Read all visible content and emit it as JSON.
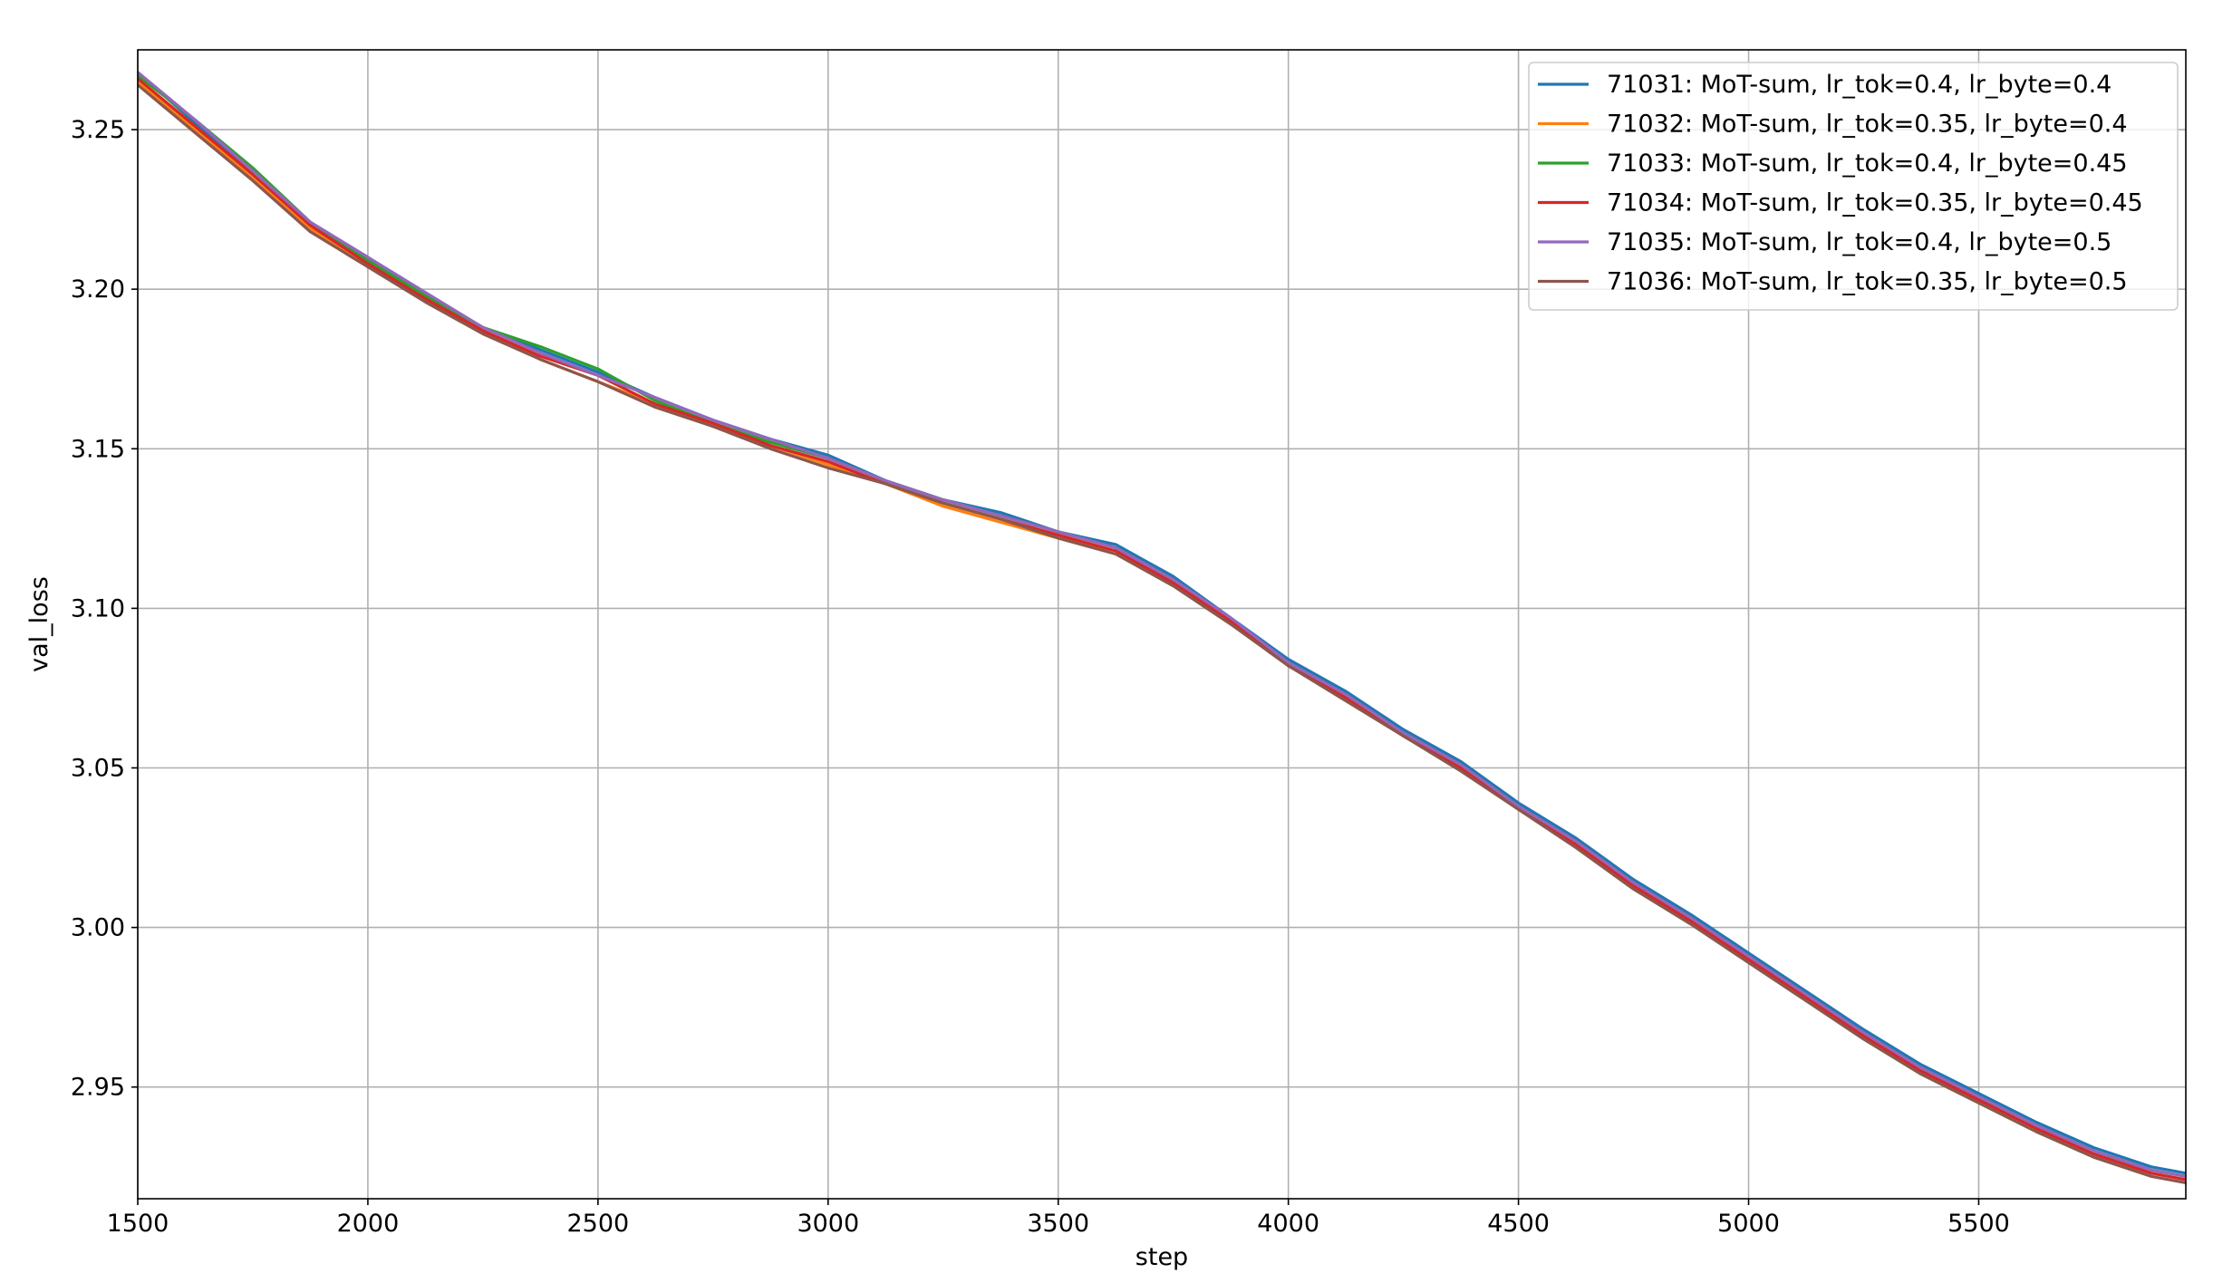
{
  "chart_data": {
    "type": "line",
    "title": "",
    "xlabel": "step",
    "ylabel": "val_loss",
    "xlim": [
      1500,
      5950
    ],
    "ylim": [
      2.915,
      3.275
    ],
    "xticks": [
      1500,
      2000,
      2500,
      3000,
      3500,
      4000,
      4500,
      5000,
      5500
    ],
    "xtick_labels": [
      "1500",
      "2000",
      "2500",
      "3000",
      "3500",
      "4000",
      "4500",
      "5000",
      "5500"
    ],
    "yticks": [
      2.95,
      3.0,
      3.05,
      3.1,
      3.15,
      3.2,
      3.25
    ],
    "ytick_labels": [
      "2.95",
      "3.00",
      "3.05",
      "3.10",
      "3.15",
      "3.20",
      "3.25"
    ],
    "grid": true,
    "legend_position": "top-right",
    "x": [
      1500,
      1625,
      1750,
      1875,
      2000,
      2125,
      2250,
      2375,
      2500,
      2625,
      2750,
      2875,
      3000,
      3125,
      3250,
      3375,
      3500,
      3625,
      3750,
      3875,
      4000,
      4125,
      4250,
      4375,
      4500,
      4625,
      4750,
      4875,
      5000,
      5125,
      5250,
      5375,
      5500,
      5625,
      5750,
      5875,
      5950
    ],
    "series": [
      {
        "name": "71031: MoT-sum, lr_tok=0.4, lr_byte=0.4",
        "color": "#1f77b4",
        "values": [
          3.268,
          3.252,
          3.237,
          3.221,
          3.21,
          3.198,
          3.188,
          3.181,
          3.174,
          3.166,
          3.159,
          3.153,
          3.148,
          3.14,
          3.134,
          3.13,
          3.124,
          3.12,
          3.11,
          3.097,
          3.084,
          3.074,
          3.062,
          3.052,
          3.039,
          3.028,
          3.015,
          3.004,
          2.992,
          2.98,
          2.968,
          2.957,
          2.948,
          2.939,
          2.931,
          2.925,
          2.923
        ]
      },
      {
        "name": "71032: MoT-sum, lr_tok=0.35, lr_byte=0.4",
        "color": "#ff7f0e",
        "values": [
          3.265,
          3.25,
          3.235,
          3.219,
          3.208,
          3.197,
          3.187,
          3.178,
          3.171,
          3.164,
          3.157,
          3.151,
          3.145,
          3.139,
          3.132,
          3.127,
          3.122,
          3.118,
          3.108,
          3.096,
          3.082,
          3.072,
          3.06,
          3.05,
          3.037,
          3.026,
          3.013,
          3.002,
          2.99,
          2.978,
          2.966,
          2.955,
          2.946,
          2.937,
          2.929,
          2.923,
          2.921
        ]
      },
      {
        "name": "71033: MoT-sum, lr_tok=0.4, lr_byte=0.45",
        "color": "#2ca02c",
        "values": [
          3.267,
          3.253,
          3.238,
          3.221,
          3.209,
          3.198,
          3.188,
          3.182,
          3.175,
          3.165,
          3.158,
          3.152,
          3.147,
          3.14,
          3.134,
          3.129,
          3.124,
          3.119,
          3.109,
          3.096,
          3.083,
          3.073,
          3.061,
          3.051,
          3.038,
          3.027,
          3.014,
          3.003,
          2.991,
          2.979,
          2.967,
          2.956,
          2.947,
          2.938,
          2.93,
          2.924,
          2.922
        ]
      },
      {
        "name": "71034: MoT-sum, lr_tok=0.35, lr_byte=0.45",
        "color": "#d62728",
        "values": [
          3.266,
          3.251,
          3.236,
          3.22,
          3.208,
          3.197,
          3.187,
          3.179,
          3.173,
          3.164,
          3.158,
          3.151,
          3.146,
          3.139,
          3.133,
          3.128,
          3.123,
          3.118,
          3.108,
          3.096,
          3.082,
          3.072,
          3.06,
          3.05,
          3.037,
          3.026,
          3.013,
          3.002,
          2.99,
          2.978,
          2.966,
          2.955,
          2.946,
          2.937,
          2.929,
          2.923,
          2.921
        ]
      },
      {
        "name": "71035: MoT-sum, lr_tok=0.4, lr_byte=0.5",
        "color": "#9467bd",
        "values": [
          3.268,
          3.253,
          3.237,
          3.221,
          3.21,
          3.199,
          3.188,
          3.18,
          3.173,
          3.166,
          3.159,
          3.153,
          3.147,
          3.14,
          3.134,
          3.129,
          3.124,
          3.119,
          3.109,
          3.097,
          3.083,
          3.073,
          3.061,
          3.051,
          3.038,
          3.027,
          3.014,
          3.003,
          2.991,
          2.979,
          2.967,
          2.956,
          2.947,
          2.938,
          2.93,
          2.924,
          2.922
        ]
      },
      {
        "name": "71036: MoT-sum, lr_tok=0.35, lr_byte=0.5",
        "color": "#8c564b",
        "values": [
          3.264,
          3.249,
          3.234,
          3.218,
          3.207,
          3.196,
          3.186,
          3.178,
          3.171,
          3.163,
          3.157,
          3.15,
          3.144,
          3.139,
          3.133,
          3.128,
          3.122,
          3.117,
          3.107,
          3.095,
          3.082,
          3.071,
          3.06,
          3.049,
          3.037,
          3.025,
          3.012,
          3.001,
          2.989,
          2.977,
          2.965,
          2.954,
          2.945,
          2.936,
          2.928,
          2.922,
          2.92
        ]
      }
    ]
  }
}
